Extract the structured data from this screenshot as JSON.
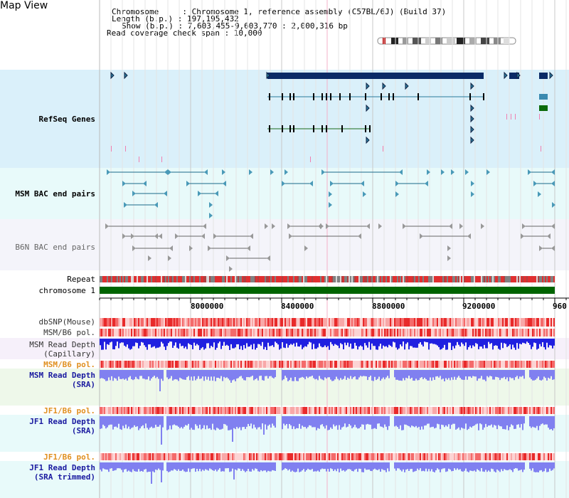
{
  "page": {
    "title": "Map View",
    "info": {
      "chromosome_line": "Chromosome     : Chromosome 1, reference assembly (C57BL/6J) (Build 37)",
      "length_line": "Length (b.p.) : 197,195,432",
      "show_line": "Show (b.p.) : 7,603,455-9,603,770 : 2,000,316 bp",
      "coverage_line": "Read coverage check span : 10,000"
    }
  },
  "tracks": {
    "refseq": {
      "label": "RefSeq Genes",
      "color": "#0a3080",
      "bg": "#daf0fa"
    },
    "msm_bac": {
      "label": "MSM BAC end pairs",
      "color": "#006b8f",
      "bg": "#e8fafa"
    },
    "b6n_bac": {
      "label": "B6N BAC end pairs",
      "color": "#555555",
      "bg": "#f4f4fa"
    },
    "repeat": {
      "label": "Repeat"
    },
    "chromosome": {
      "label": "chromosome 1",
      "color": "#006400"
    },
    "dbsnp": {
      "label": "dbSNP(Mouse)"
    },
    "msm_b6_pol_1": {
      "label": "MSM/B6 pol."
    },
    "msm_depth_cap": {
      "label": "MSM Read Depth\n(Capillary)"
    },
    "msm_b6_pol_2": {
      "label": "MSM/B6 pol.",
      "color": "#e09020"
    },
    "msm_depth_sra": {
      "label": "MSM Read Depth\n(SRA)",
      "color": "#1a1aa0"
    },
    "jf1_b6_pol_1": {
      "label": "JF1/B6 pol.",
      "color": "#e09020"
    },
    "jf1_depth_sra": {
      "label": "JF1 Read Depth\n(SRA)",
      "color": "#1a1aa0"
    },
    "jf1_b6_pol_2": {
      "label": "JF1/B6 pol.",
      "color": "#e09020"
    },
    "jf1_depth_trim": {
      "label": "JF1 Read Depth\n(SRA trimmed)",
      "color": "#1a1aa0"
    }
  },
  "axis": {
    "ticks": [
      "8000000",
      "8400000",
      "8800000",
      "9200000",
      "960"
    ]
  },
  "colors": {
    "gene_dark": "#0a2a66",
    "gene_teal": "#2a7a9a",
    "gene_green": "#1a6a1a",
    "snp_red": "#e83030",
    "depth_blue": "#2020e0",
    "depth_light": "#8080f0"
  }
}
